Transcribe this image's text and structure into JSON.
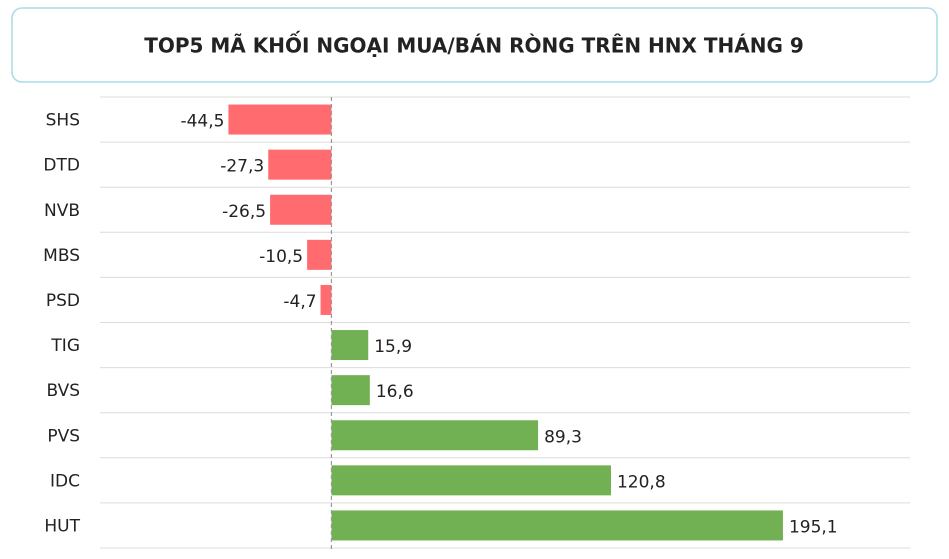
{
  "chart_data": {
    "type": "bar",
    "orientation": "horizontal",
    "title": "TOP5 MÃ KHỐI NGOẠI MUA/BÁN RÒNG TRÊN HNX THÁNG 9",
    "categories": [
      "SHS",
      "DTD",
      "NVB",
      "MBS",
      "PSD",
      "TIG",
      "BVS",
      "PVS",
      "IDC",
      "HUT"
    ],
    "values": [
      -44.5,
      -27.3,
      -26.5,
      -10.5,
      -4.7,
      15.9,
      16.6,
      89.3,
      120.8,
      195.1
    ],
    "value_labels": [
      "-44,5",
      "-27,3",
      "-26,5",
      "-10,5",
      "-4,7",
      "15,9",
      "16,6",
      "89,3",
      "120,8",
      "195,1"
    ],
    "negative_color": "#ff6b6f",
    "positive_color": "#72b054",
    "xlim": [
      -100,
      250
    ],
    "grid": true
  }
}
